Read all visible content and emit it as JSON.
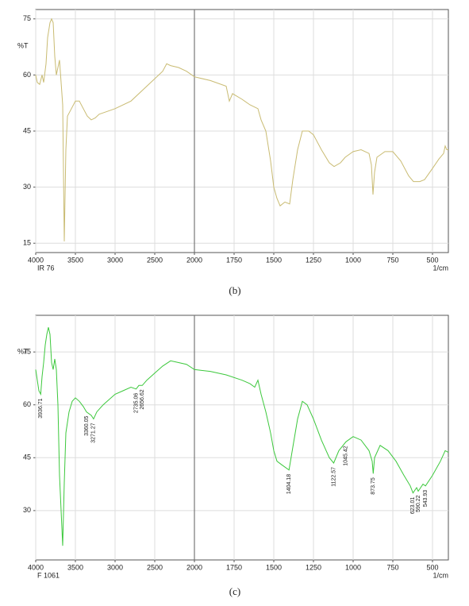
{
  "chart_data": [
    {
      "type": "line",
      "caption": "(b)",
      "y_label": "%T",
      "x_label": "1/cm",
      "xlim": [
        4000,
        400
      ],
      "xbreak": 2000,
      "xticks": [
        4000,
        3500,
        3000,
        2500,
        2000,
        1750,
        1500,
        1250,
        1000,
        750,
        500
      ],
      "ylim": [
        12.5,
        77.5
      ],
      "yticks": [
        15,
        30,
        45,
        60,
        75
      ],
      "grid": true,
      "x": [
        4000,
        3980,
        3950,
        3920,
        3900,
        3870,
        3850,
        3820,
        3800,
        3780,
        3760,
        3740,
        3720,
        3700,
        3680,
        3660,
        3640,
        3620,
        3600,
        3550,
        3500,
        3450,
        3400,
        3350,
        3300,
        3250,
        3200,
        3000,
        2800,
        2600,
        2500,
        2400,
        2350,
        2300,
        2200,
        2100,
        2000,
        1900,
        1800,
        1780,
        1760,
        1700,
        1650,
        1600,
        1580,
        1550,
        1520,
        1500,
        1480,
        1460,
        1430,
        1400,
        1380,
        1350,
        1320,
        1280,
        1250,
        1200,
        1150,
        1120,
        1080,
        1050,
        1000,
        950,
        900,
        885,
        875,
        865,
        850,
        800,
        750,
        700,
        650,
        620,
        580,
        550,
        500,
        460,
        430,
        420,
        410,
        400
      ],
      "series": [
        {
          "name": "IR 76",
          "color": "#c9bb72",
          "values": [
            60,
            58,
            57.5,
            60,
            58,
            63,
            70,
            74,
            75,
            74,
            65,
            60,
            62,
            64,
            58,
            52,
            15.5,
            40,
            49,
            51,
            53,
            53,
            51,
            49,
            48,
            48.5,
            49.5,
            51,
            53,
            57,
            59,
            61,
            63,
            62.5,
            62,
            61,
            59.5,
            58.5,
            57,
            53,
            55,
            53.5,
            52,
            51,
            48,
            45,
            37,
            30,
            27,
            25,
            26,
            25.5,
            32,
            40,
            45,
            45,
            44,
            40,
            36.5,
            35.5,
            36.5,
            38,
            39.5,
            40,
            39,
            36,
            28,
            34,
            38,
            39.5,
            39.5,
            37,
            33,
            31.5,
            31.5,
            32,
            35,
            37.5,
            39,
            41,
            40,
            40
          ]
        }
      ]
    },
    {
      "type": "line",
      "caption": "(c)",
      "y_label": "%T",
      "x_label": "1/cm",
      "xlim": [
        4000,
        400
      ],
      "xbreak": 2000,
      "xticks": [
        4000,
        3500,
        3000,
        2500,
        2000,
        1750,
        1500,
        1250,
        1000,
        750,
        500
      ],
      "ylim": [
        16,
        85.4
      ],
      "yticks": [
        30,
        45,
        60,
        75
      ],
      "grid": true,
      "x": [
        4000,
        3980,
        3960,
        3936.71,
        3920,
        3900,
        3880,
        3860,
        3840,
        3820,
        3800,
        3780,
        3760,
        3740,
        3720,
        3700,
        3680,
        3660,
        3640,
        3620,
        3580,
        3540,
        3500,
        3450,
        3400,
        3360.05,
        3300,
        3271.27,
        3230,
        3150,
        3000,
        2900,
        2800,
        2735.06,
        2700,
        2656.62,
        2600,
        2500,
        2400,
        2300,
        2200,
        2100,
        2000,
        1900,
        1800,
        1700,
        1650,
        1620,
        1600,
        1580,
        1550,
        1520,
        1500,
        1480,
        1450,
        1404.18,
        1380,
        1350,
        1320,
        1290,
        1250,
        1200,
        1150,
        1122.57,
        1090,
        1045.42,
        1000,
        950,
        900,
        880,
        873.75,
        865,
        830,
        780,
        730,
        680,
        640,
        623.01,
        600,
        590.22,
        560,
        543.93,
        500,
        450,
        420,
        400
      ],
      "series": [
        {
          "name": "F 1061",
          "color": "#3cc83c",
          "values": [
            70,
            67,
            64,
            63,
            68,
            72,
            77,
            80,
            82,
            80,
            72,
            70,
            73,
            70,
            60,
            40,
            30,
            20,
            38,
            52,
            58,
            61,
            62,
            61,
            59.5,
            58,
            57,
            56,
            58,
            60,
            63,
            64,
            65,
            64.5,
            65.5,
            65.5,
            67,
            69,
            71,
            72.5,
            72,
            71.5,
            70,
            69.5,
            68.5,
            67,
            66,
            65,
            67,
            63,
            58,
            52,
            47,
            44,
            43,
            41.5,
            48,
            56,
            61,
            60,
            56,
            50,
            45,
            43.5,
            47,
            49.5,
            51,
            50,
            47,
            44,
            40.5,
            45,
            48.5,
            47,
            44,
            40,
            37,
            35,
            36.5,
            35.5,
            37.5,
            37,
            40,
            44,
            47,
            46.5
          ]
        }
      ],
      "peaks": [
        3936.71,
        3360.05,
        3271.27,
        2735.06,
        2656.62,
        1404.18,
        1122.57,
        1045.42,
        873.75,
        623.01,
        590.22,
        543.93
      ]
    }
  ]
}
